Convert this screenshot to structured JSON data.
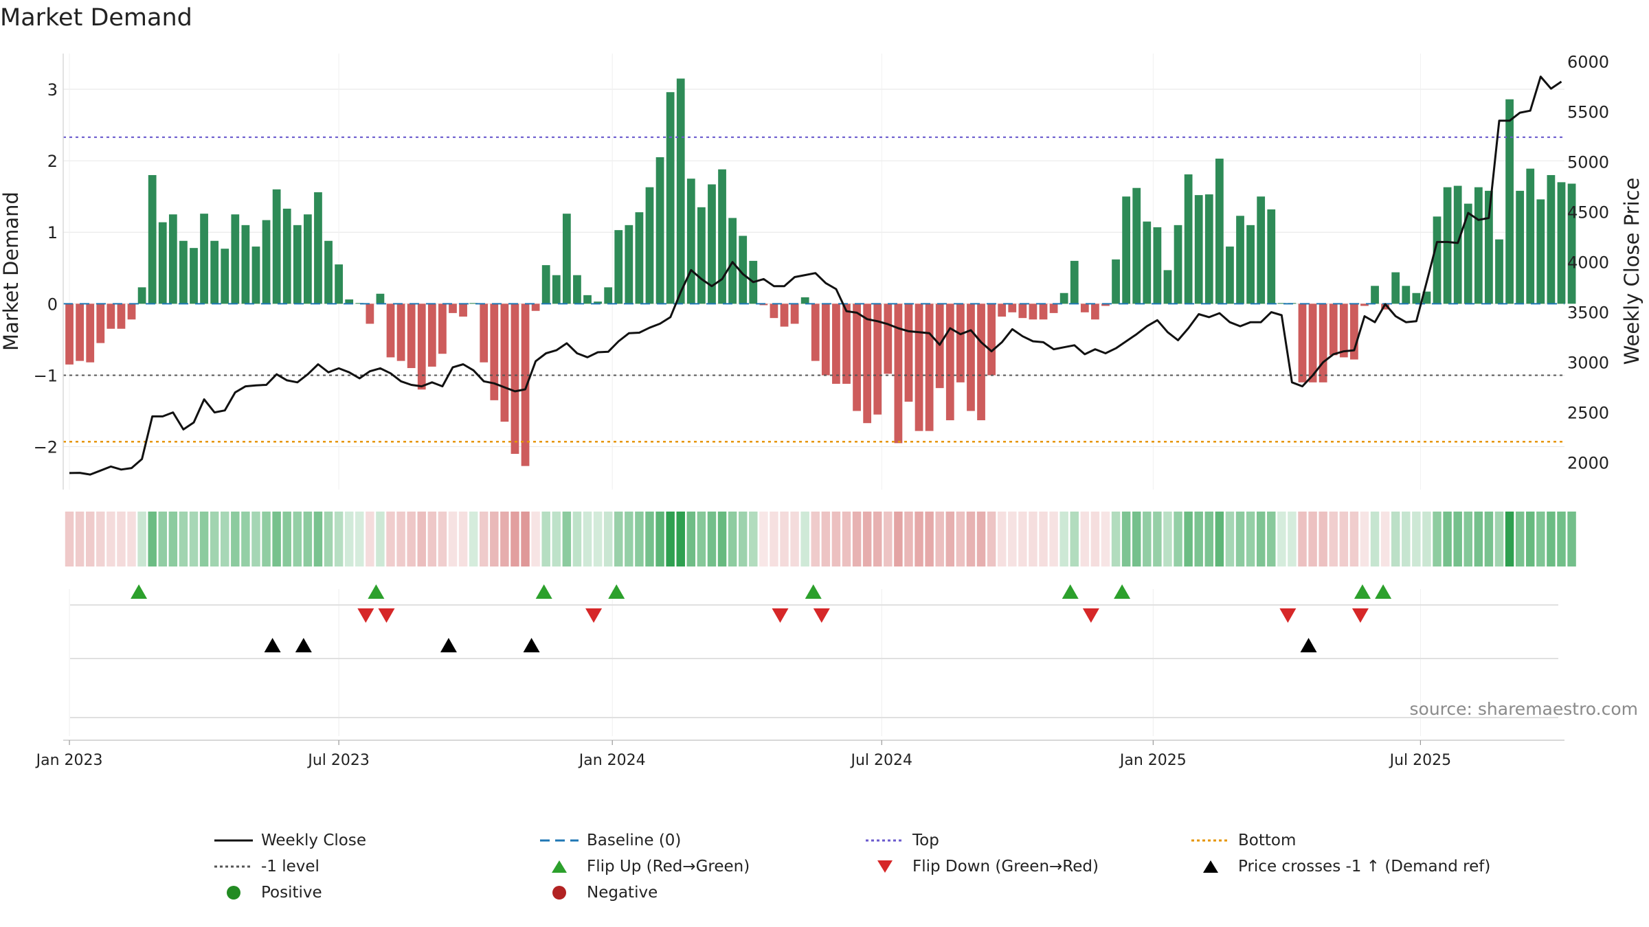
{
  "chart_data": {
    "type": "bar",
    "title": "Market Demand",
    "ylabel": "Market Demand",
    "y2label": "Weekly Close Price",
    "ylim": [
      -2.6,
      3.5
    ],
    "y2lim": [
      1730,
      6080
    ],
    "yticks": [
      3,
      2,
      1,
      0,
      -1,
      -2
    ],
    "ytick_labels": [
      "3",
      "2",
      "1",
      "0",
      "−1",
      "−2"
    ],
    "y2ticks": [
      6000,
      5500,
      5000,
      4500,
      4000,
      3500,
      3000,
      2500,
      2000
    ],
    "y2tick_labels": [
      "6000",
      "5500",
      "5000",
      "4500",
      "4000",
      "3500",
      "3000",
      "2500",
      "2000"
    ],
    "xlim_weeks": [
      -0.6,
      144.3
    ],
    "xticks_weeks": [
      0,
      26,
      52.4,
      78.4,
      104.6,
      130.4
    ],
    "xtick_labels": [
      "Jan 2023",
      "Jul 2023",
      "Jan 2024",
      "Jul 2024",
      "Jan 2025",
      "Jul 2025"
    ],
    "reference_lines": {
      "baseline": 0,
      "top": 2.33,
      "minus_one": -1,
      "bottom": -1.93
    },
    "series": [
      {
        "name": "Market Demand",
        "axis": "left",
        "type": "bar",
        "values": [
          -0.85,
          -0.8,
          -0.82,
          -0.55,
          -0.35,
          -0.35,
          -0.22,
          0.23,
          1.8,
          1.14,
          1.25,
          0.88,
          0.78,
          1.26,
          0.88,
          0.77,
          1.25,
          1.1,
          0.8,
          1.17,
          1.6,
          1.33,
          1.1,
          1.25,
          1.56,
          0.88,
          0.55,
          0.06,
          0.01,
          -0.28,
          0.14,
          -0.75,
          -0.8,
          -0.9,
          -1.2,
          -0.88,
          -0.7,
          -0.13,
          -0.18,
          0.01,
          -0.82,
          -1.35,
          -1.65,
          -2.1,
          -2.27,
          -0.1,
          0.54,
          0.4,
          1.26,
          0.4,
          0.12,
          0.03,
          0.23,
          1.03,
          1.1,
          1.28,
          1.63,
          2.05,
          2.96,
          3.15,
          1.75,
          1.35,
          1.67,
          1.88,
          1.2,
          0.95,
          0.6,
          -0.02,
          -0.2,
          -0.32,
          -0.28,
          0.09,
          -0.8,
          -1.0,
          -1.12,
          -1.12,
          -1.5,
          -1.67,
          -1.55,
          -0.98,
          -1.95,
          -1.37,
          -1.78,
          -1.78,
          -1.18,
          -1.63,
          -1.1,
          -1.5,
          -1.63,
          -1.0,
          -0.18,
          -0.12,
          -0.2,
          -0.22,
          -0.22,
          -0.13,
          0.15,
          0.6,
          -0.12,
          -0.22,
          -0.03,
          0.62,
          1.5,
          1.62,
          1.15,
          1.07,
          0.47,
          1.1,
          1.81,
          1.52,
          1.53,
          2.03,
          0.8,
          1.23,
          1.1,
          1.5,
          1.32,
          0.01,
          0.01,
          -1.1,
          -1.1,
          -1.1,
          -0.72,
          -0.75,
          -0.78,
          -0.03,
          0.25,
          -0.08,
          0.44,
          0.25,
          0.15,
          0.17,
          1.22,
          1.63,
          1.65,
          1.4,
          1.63,
          1.58,
          0.9,
          2.86,
          1.58,
          1.89,
          1.46,
          1.8,
          1.7,
          1.68
        ]
      },
      {
        "name": "Weekly Close",
        "axis": "right",
        "type": "line",
        "values": [
          1895,
          1897,
          1880,
          1920,
          1960,
          1930,
          1945,
          2035,
          2460,
          2460,
          2500,
          2330,
          2400,
          2630,
          2500,
          2520,
          2700,
          2760,
          2770,
          2775,
          2880,
          2820,
          2800,
          2880,
          2980,
          2900,
          2940,
          2900,
          2840,
          2910,
          2940,
          2890,
          2810,
          2775,
          2760,
          2800,
          2760,
          2950,
          2980,
          2920,
          2810,
          2790,
          2750,
          2710,
          2730,
          3010,
          3090,
          3120,
          3190,
          3090,
          3050,
          3100,
          3105,
          3210,
          3290,
          3295,
          3345,
          3385,
          3450,
          3700,
          3920,
          3830,
          3760,
          3830,
          4000,
          3880,
          3800,
          3830,
          3760,
          3760,
          3850,
          3870,
          3890,
          3790,
          3730,
          3510,
          3495,
          3430,
          3410,
          3380,
          3340,
          3310,
          3300,
          3290,
          3175,
          3340,
          3280,
          3320,
          3200,
          3110,
          3200,
          3330,
          3260,
          3210,
          3200,
          3130,
          3150,
          3170,
          3080,
          3130,
          3090,
          3140,
          3210,
          3280,
          3360,
          3420,
          3300,
          3220,
          3340,
          3480,
          3450,
          3490,
          3400,
          3360,
          3400,
          3400,
          3500,
          3470,
          2800,
          2760,
          2870,
          3000,
          3080,
          3110,
          3120,
          3460,
          3400,
          3580,
          3460,
          3400,
          3410,
          3800,
          4200,
          4200,
          4190,
          4490,
          4420,
          4440,
          5410,
          5410,
          5490,
          5510,
          5850,
          5730,
          5800
        ]
      }
    ],
    "flip_up_weeks": [
      6.7,
      29.6,
      45.8,
      52.8,
      71.8,
      96.6,
      101.6,
      124.8,
      126.8
    ],
    "flip_down_weeks": [
      28.6,
      30.6,
      50.6,
      68.6,
      72.6,
      98.6,
      117.6,
      124.6
    ],
    "price_cross_weeks": [
      19.6,
      22.6,
      36.6,
      44.6,
      119.6
    ]
  },
  "source_note": "source: sharemaestro.com",
  "legend": [
    {
      "key": "weekly-close",
      "label": "Weekly Close"
    },
    {
      "key": "baseline",
      "label": "Baseline (0)"
    },
    {
      "key": "top",
      "label": "Top"
    },
    {
      "key": "bottom",
      "label": "Bottom"
    },
    {
      "key": "minus-one",
      "label": "-1 level"
    },
    {
      "key": "flip-up",
      "label": "Flip Up (Red→Green)"
    },
    {
      "key": "flip-down",
      "label": "Flip Down (Green→Red)"
    },
    {
      "key": "price-cross",
      "label": "Price crosses -1 ↑ (Demand ref)"
    },
    {
      "key": "positive",
      "label": "Positive"
    },
    {
      "key": "negative",
      "label": "Negative"
    }
  ],
  "colors": {
    "positive_bar": "#2e8b57",
    "negative_bar": "#cd5c5c",
    "price_line": "#111111",
    "baseline": "#1f77b4",
    "top_line": "#6a5acd",
    "minus_one_line": "#555555",
    "bottom_line": "#e69500",
    "flip_up": "#2ca02c",
    "flip_down": "#d62728",
    "price_cross": "#000000",
    "positive_dot": "#228b22",
    "negative_dot": "#b22222",
    "grid": "#e6e6e6",
    "source_text": "#8a8a8a"
  }
}
